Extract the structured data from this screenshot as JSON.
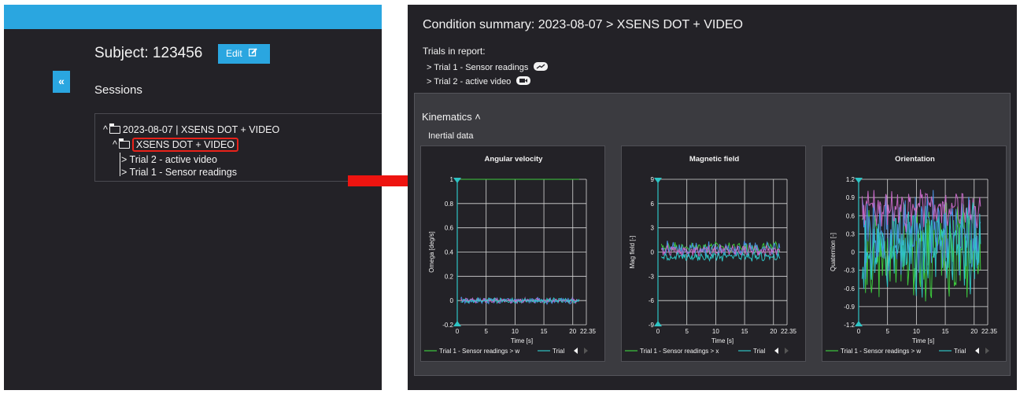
{
  "left_panel": {
    "collapse_label": "«",
    "subject_title": "Subject: 123456",
    "edit_label": "Edit",
    "sessions_title": "Sessions",
    "tree": {
      "session": "2023-08-07 | XSENS DOT + VIDEO",
      "condition": "XSENS DOT + VIDEO",
      "trials": [
        "> Trial 2 - active video",
        "> Trial 1 - Sensor readings"
      ]
    }
  },
  "right_panel": {
    "condition_title": "Condition summary: 2023-08-07 > XSENS DOT + VIDEO",
    "trials_title": "Trials in report:",
    "trials": [
      {
        "label": "> Trial 1 - Sensor readings",
        "icon": "chart-icon"
      },
      {
        "label": "> Trial 2 - active video",
        "icon": "video-icon"
      }
    ],
    "kinematics": {
      "title": "Kinematics",
      "subtitle": "Inertial data"
    }
  },
  "chart_data": [
    {
      "type": "line",
      "title": "Angular velocity",
      "xlabel": "Time [s]",
      "ylabel": "Omega [deg/s]",
      "xlim": [
        0,
        22.35
      ],
      "ylim": [
        -0.2,
        1
      ],
      "x_ticks": [
        "0",
        "5",
        "10",
        "15",
        "20",
        "22.35"
      ],
      "y_ticks": [
        "-0.2",
        "0",
        "0.2",
        "0.4",
        "0.6",
        "0.8",
        "1"
      ],
      "series": [
        {
          "name": "Trial 1 - Sensor readings > w",
          "color": "#3cc93c",
          "level": 1.0,
          "noise": 0.0
        },
        {
          "color": "#4a90e2",
          "level": 0.0,
          "noise": 0.02
        },
        {
          "color": "#c468c4",
          "level": 0.0,
          "noise": 0.015
        },
        {
          "color": "#2ec4c4",
          "level": 0.0,
          "noise": 0.015
        }
      ],
      "legend": [
        "Trial 1 - Sensor readings > w",
        "Trial"
      ]
    },
    {
      "type": "line",
      "title": "Magnetic field",
      "xlabel": "Time [s]",
      "ylabel": "Mag field [-]",
      "xlim": [
        0,
        22.35
      ],
      "ylim": [
        -9,
        9
      ],
      "x_ticks": [
        "0",
        "5",
        "10",
        "15",
        "20",
        "22.35"
      ],
      "y_ticks": [
        "-9",
        "-6",
        "-3",
        "0",
        "3",
        "6",
        "9"
      ],
      "series": [
        {
          "name": "Trial 1 - Sensor readings > x",
          "color": "#3cc93c",
          "level": 0.6,
          "noise": 0.5
        },
        {
          "color": "#4a90e2",
          "level": 0.4,
          "noise": 0.7
        },
        {
          "color": "#c468c4",
          "level": 0.2,
          "noise": 0.5
        },
        {
          "color": "#2ec4c4",
          "level": -0.6,
          "noise": 0.4
        }
      ],
      "legend": [
        "Trial 1 - Sensor readings > x",
        "Trial"
      ]
    },
    {
      "type": "line",
      "title": "Orientation",
      "xlabel": "Time [s]",
      "ylabel": "Quaternion [-]",
      "xlim": [
        0,
        22.35
      ],
      "ylim": [
        -1.2,
        1.2
      ],
      "x_ticks": [
        "0",
        "5",
        "10",
        "15",
        "20",
        "22.35"
      ],
      "y_ticks": [
        "-1.2",
        "-0.9",
        "-0.6",
        "-0.3",
        "0",
        "0.3",
        "0.6",
        "0.9",
        "1.2"
      ],
      "series": [
        {
          "name": "Trial 1 - Sensor readings > w",
          "color": "#3cc93c",
          "level": 0.0,
          "noise": 0.6
        },
        {
          "color": "#4a90e2",
          "level": 0.3,
          "noise": 0.5
        },
        {
          "color": "#c468c4",
          "level": 0.7,
          "noise": 0.25
        },
        {
          "color": "#2ec4c4",
          "level": 0.0,
          "noise": 0.55
        }
      ],
      "legend": [
        "Trial 1 - Sensor readings > w",
        "Trial"
      ]
    }
  ]
}
